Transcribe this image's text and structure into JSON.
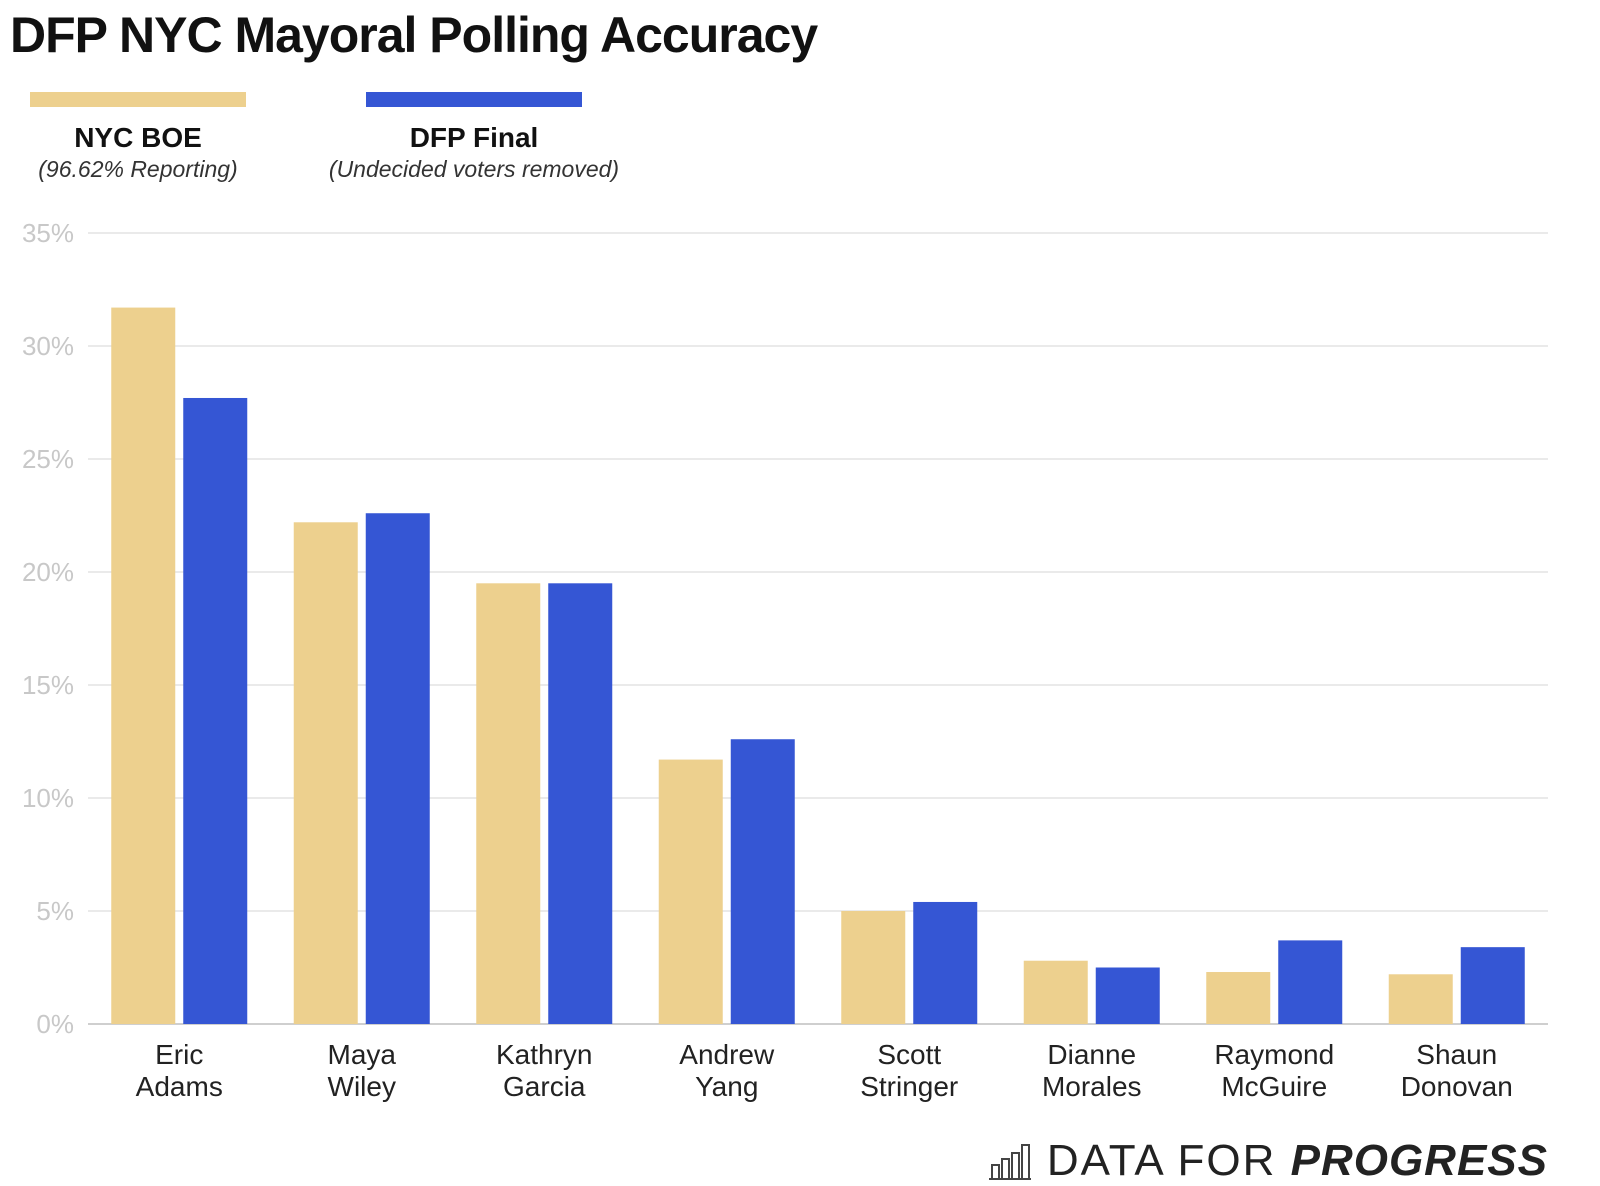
{
  "title": "DFP NYC Mayoral Polling Accuracy",
  "legend": [
    {
      "name": "NYC BOE",
      "note": "(96.62% Reporting)",
      "color": "#edd08e"
    },
    {
      "name": "DFP Final",
      "note": "(Undecided voters removed)",
      "color": "#3556d4"
    }
  ],
  "logo": {
    "word1": "DATA FOR",
    "word2": "PROGRESS"
  },
  "chart_data": {
    "type": "bar",
    "categories": [
      [
        "Eric",
        "Adams"
      ],
      [
        "Maya",
        "Wiley"
      ],
      [
        "Kathryn",
        "Garcia"
      ],
      [
        "Andrew",
        "Yang"
      ],
      [
        "Scott",
        "Stringer"
      ],
      [
        "Dianne",
        "Morales"
      ],
      [
        "Raymond",
        "McGuire"
      ],
      [
        "Shaun",
        "Donovan"
      ]
    ],
    "series": [
      {
        "name": "NYC BOE",
        "values": [
          31.7,
          22.2,
          19.5,
          11.7,
          5.0,
          2.8,
          2.3,
          2.2
        ]
      },
      {
        "name": "DFP Final",
        "values": [
          27.7,
          22.6,
          19.5,
          12.6,
          5.4,
          2.5,
          3.7,
          3.4
        ]
      }
    ],
    "ylim": [
      0,
      35
    ],
    "yticks": [
      "0%",
      "5%",
      "10%",
      "15%",
      "20%",
      "25%",
      "30%",
      "35%"
    ],
    "grid": true,
    "legend_position": "top-left"
  }
}
